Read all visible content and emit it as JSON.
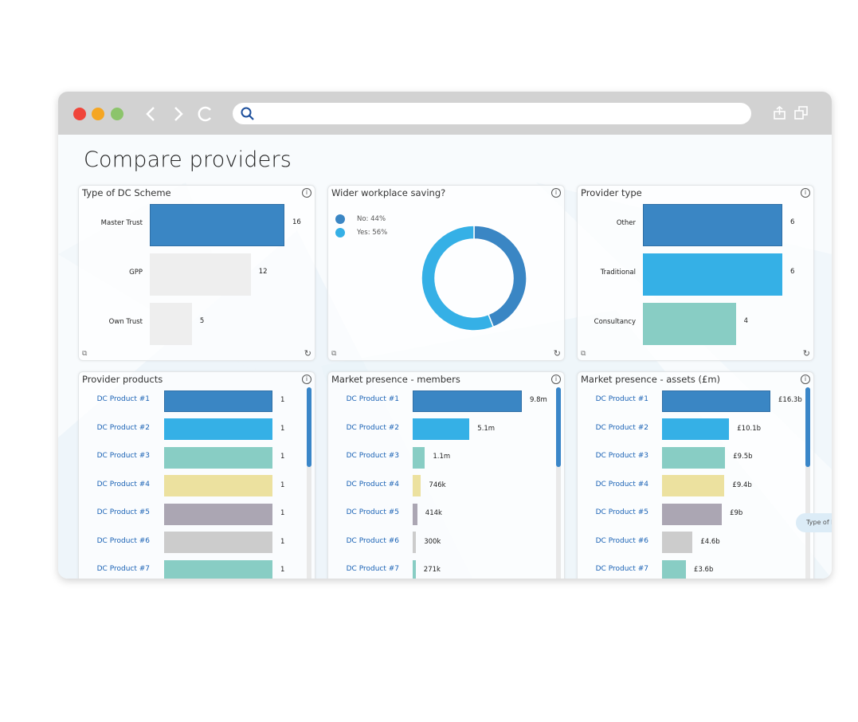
{
  "browser": {
    "traffic_lights": [
      "#f0453a",
      "#f5a623",
      "#8cc46b"
    ],
    "nav_icons": [
      "back-icon",
      "forward-icon",
      "reload-icon"
    ],
    "search_icon": "search-icon",
    "search_value": "",
    "right_icons": [
      "share-icon",
      "duplicate-window-icon"
    ]
  },
  "page": {
    "title": "Compare providers"
  },
  "colors": {
    "dark_blue": "#3a86c4",
    "light_blue": "#35b0e6",
    "teal": "#88cdc4",
    "yellow": "#ece19f",
    "purple": "#aba6b3",
    "grey": "#cccccc",
    "light_grey": "#eeeeee",
    "link": "#1a62b5"
  },
  "chip": {
    "label": "Type of DC"
  },
  "chart_data": [
    {
      "id": "dc-scheme",
      "type": "bar",
      "orientation": "horizontal",
      "title": "Type of DC Scheme",
      "categories": [
        "Master Trust",
        "GPP",
        "Own Trust"
      ],
      "values": [
        16,
        12,
        5
      ],
      "value_labels": [
        "16",
        "12",
        "5"
      ],
      "colors": [
        "#3a86c4",
        "#eeeeee",
        "#eeeeee"
      ]
    },
    {
      "id": "workplace-saving",
      "type": "pie",
      "donut": true,
      "title": "Wider workplace saving?",
      "categories": [
        "No",
        "Yes"
      ],
      "values": [
        44,
        56
      ],
      "legend": [
        "No: 44%",
        "Yes: 56%"
      ],
      "legend_position": "top-left",
      "colors": [
        "#3a86c4",
        "#35b0e6"
      ]
    },
    {
      "id": "provider-type",
      "type": "bar",
      "orientation": "horizontal",
      "title": "Provider type",
      "categories": [
        "Other",
        "Traditional",
        "Consultancy"
      ],
      "values": [
        6,
        6,
        4
      ],
      "value_labels": [
        "6",
        "6",
        "4"
      ],
      "colors": [
        "#3a86c4",
        "#35b0e6",
        "#88cdc4"
      ]
    },
    {
      "id": "provider-products",
      "type": "bar",
      "orientation": "horizontal",
      "title": "Provider products",
      "categories": [
        "DC Product #1",
        "DC Product #2",
        "DC Product #3",
        "DC Product #4",
        "DC Product #5",
        "DC Product #6",
        "DC Product #7"
      ],
      "values": [
        1,
        1,
        1,
        1,
        1,
        1,
        1
      ],
      "value_labels": [
        "1",
        "1",
        "1",
        "1",
        "1",
        "1",
        "1"
      ],
      "colors": [
        "#3a86c4",
        "#35b0e6",
        "#88cdc4",
        "#ece19f",
        "#aba6b3",
        "#cccccc",
        "#88cdc4"
      ]
    },
    {
      "id": "market-members",
      "type": "bar",
      "orientation": "horizontal",
      "title": "Market presence - members",
      "categories": [
        "DC Product #1",
        "DC Product #2",
        "DC Product #3",
        "DC Product #4",
        "DC Product #5",
        "DC Product #6",
        "DC Product #7"
      ],
      "values": [
        9800000,
        5100000,
        1100000,
        746000,
        414000,
        300000,
        271000
      ],
      "value_labels": [
        "9.8m",
        "5.1m",
        "1.1m",
        "746k",
        "414k",
        "300k",
        "271k"
      ],
      "colors": [
        "#3a86c4",
        "#35b0e6",
        "#88cdc4",
        "#ece19f",
        "#aba6b3",
        "#cccccc",
        "#88cdc4"
      ]
    },
    {
      "id": "market-assets",
      "type": "bar",
      "orientation": "horizontal",
      "title": "Market presence - assets (£m)",
      "categories": [
        "DC Product #1",
        "DC Product #2",
        "DC Product #3",
        "DC Product #4",
        "DC Product #5",
        "DC Product #6",
        "DC Product #7"
      ],
      "values": [
        16300,
        10100,
        9500,
        9400,
        9000,
        4600,
        3600
      ],
      "value_labels": [
        "£16.3b",
        "£10.1b",
        "£9.5b",
        "£9.4b",
        "£9b",
        "£4.6b",
        "£3.6b"
      ],
      "colors": [
        "#3a86c4",
        "#35b0e6",
        "#88cdc4",
        "#ece19f",
        "#aba6b3",
        "#cccccc",
        "#88cdc4"
      ]
    }
  ]
}
